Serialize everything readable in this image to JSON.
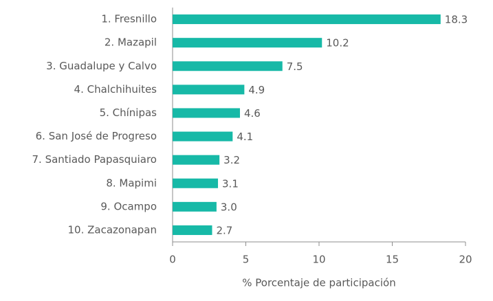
{
  "chart_data": {
    "type": "barh",
    "categories": [
      "1. Fresnillo",
      "2. Mazapil",
      "3. Guadalupe y Calvo",
      "4. Chalchihuites",
      "5. Chínipas",
      "6. San José de Progreso",
      "7. Santiado Papasquiaro",
      "8. Mapimi",
      "9. Ocampo",
      "10. Zacazonapan"
    ],
    "values": [
      18.3,
      10.2,
      7.5,
      4.9,
      4.6,
      4.1,
      3.2,
      3.1,
      3.0,
      2.7
    ],
    "value_labels": [
      "18.3",
      "10.2",
      "7.5",
      "4.9",
      "4.6",
      "4.1",
      "3.2",
      "3.1",
      "3.0",
      "2.7"
    ],
    "color": "#17b9a7",
    "xlim": [
      0,
      20
    ],
    "xticks": [
      0,
      5,
      10,
      15,
      20
    ],
    "xlabel": "% Porcentaje de participación"
  }
}
